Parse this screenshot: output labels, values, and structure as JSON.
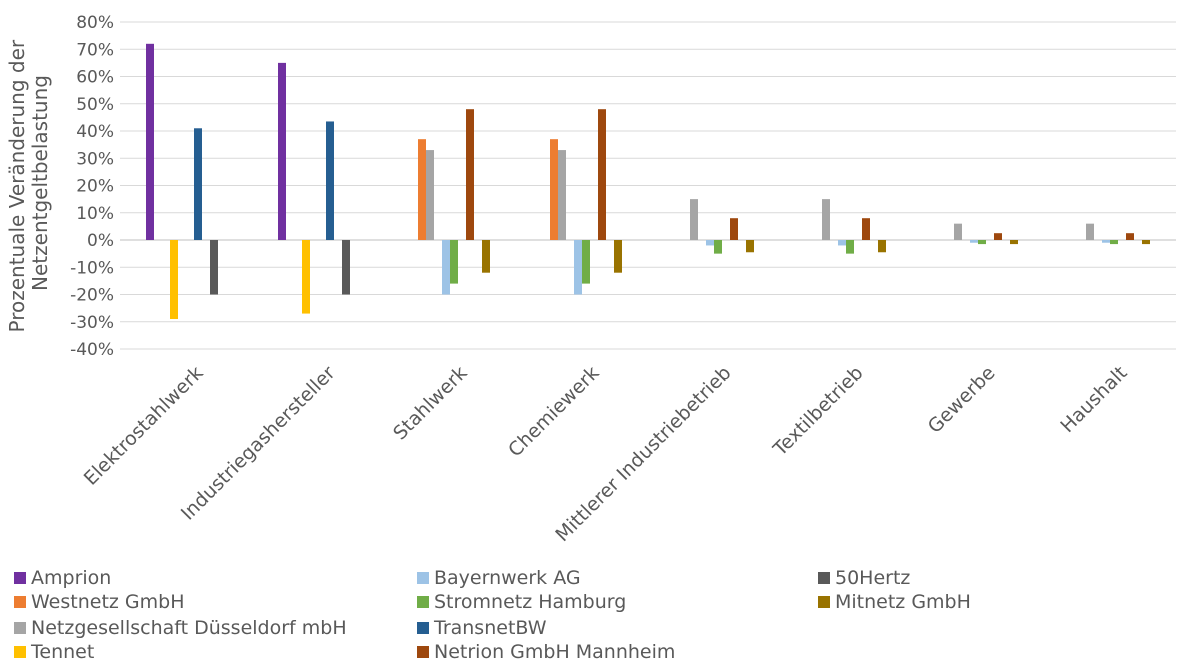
{
  "chart_data": {
    "type": "bar",
    "ylabel": "Prozentuale Veränderung der Netzentgeltbelastung",
    "ylabel_lines": [
      "Prozentuale Veränderung der",
      "Netzentgeltbelastung"
    ],
    "xlabel": "",
    "ylim": [
      -40,
      80
    ],
    "y_ticks": [
      80,
      70,
      60,
      50,
      40,
      30,
      20,
      10,
      0,
      -10,
      -20,
      -30,
      -40
    ],
    "y_tick_labels": [
      "80%",
      "70%",
      "60%",
      "50%",
      "40%",
      "30%",
      "20%",
      "10%",
      "0%",
      "-10%",
      "-20%",
      "-30%",
      "-40%"
    ],
    "grid": true,
    "legend_position": "bottom",
    "categories": [
      "Elektrostahlwerk",
      "Industriegashersteller",
      "Stahlwerk",
      "Chemiewerk",
      "Mittlerer Industriebetrieb",
      "Textilbetrieb",
      "Gewerbe",
      "Haushalt"
    ],
    "series": [
      {
        "name": "Amprion",
        "color": "#7030A0",
        "values": [
          72,
          65,
          null,
          null,
          null,
          null,
          null,
          null
        ]
      },
      {
        "name": "Westnetz GmbH",
        "color": "#ED7D31",
        "values": [
          null,
          null,
          37,
          37,
          null,
          null,
          null,
          null
        ]
      },
      {
        "name": "Netzgesellschaft Düsseldorf mbH",
        "color": "#A5A5A5",
        "values": [
          null,
          null,
          33,
          33,
          15,
          15,
          6,
          6
        ]
      },
      {
        "name": "Tennet",
        "color": "#FFC000",
        "values": [
          -29,
          -27,
          null,
          null,
          null,
          null,
          null,
          null
        ]
      },
      {
        "name": "Bayernwerk AG",
        "color": "#9DC3E6",
        "values": [
          null,
          null,
          -20,
          -20,
          -2,
          -2,
          -1,
          -1
        ]
      },
      {
        "name": "Stromnetz Hamburg",
        "color": "#70AD47",
        "values": [
          null,
          null,
          -16,
          -16,
          -5,
          -5,
          -1.5,
          -1.5
        ]
      },
      {
        "name": "TransnetBW",
        "color": "#255E91",
        "values": [
          41,
          43.5,
          null,
          null,
          null,
          null,
          null,
          null
        ]
      },
      {
        "name": "Netrion GmbH Mannheim",
        "color": "#9E480E",
        "values": [
          null,
          null,
          48,
          48,
          8,
          8,
          2.5,
          2.5
        ]
      },
      {
        "name": "50Hertz",
        "color": "#595959",
        "values": [
          -20,
          -20,
          null,
          null,
          null,
          null,
          null,
          null
        ]
      },
      {
        "name": "Mitnetz GmbH",
        "color": "#997300",
        "values": [
          null,
          null,
          -12,
          -12,
          -4.5,
          -4.5,
          -1.5,
          -1.5
        ]
      }
    ]
  }
}
